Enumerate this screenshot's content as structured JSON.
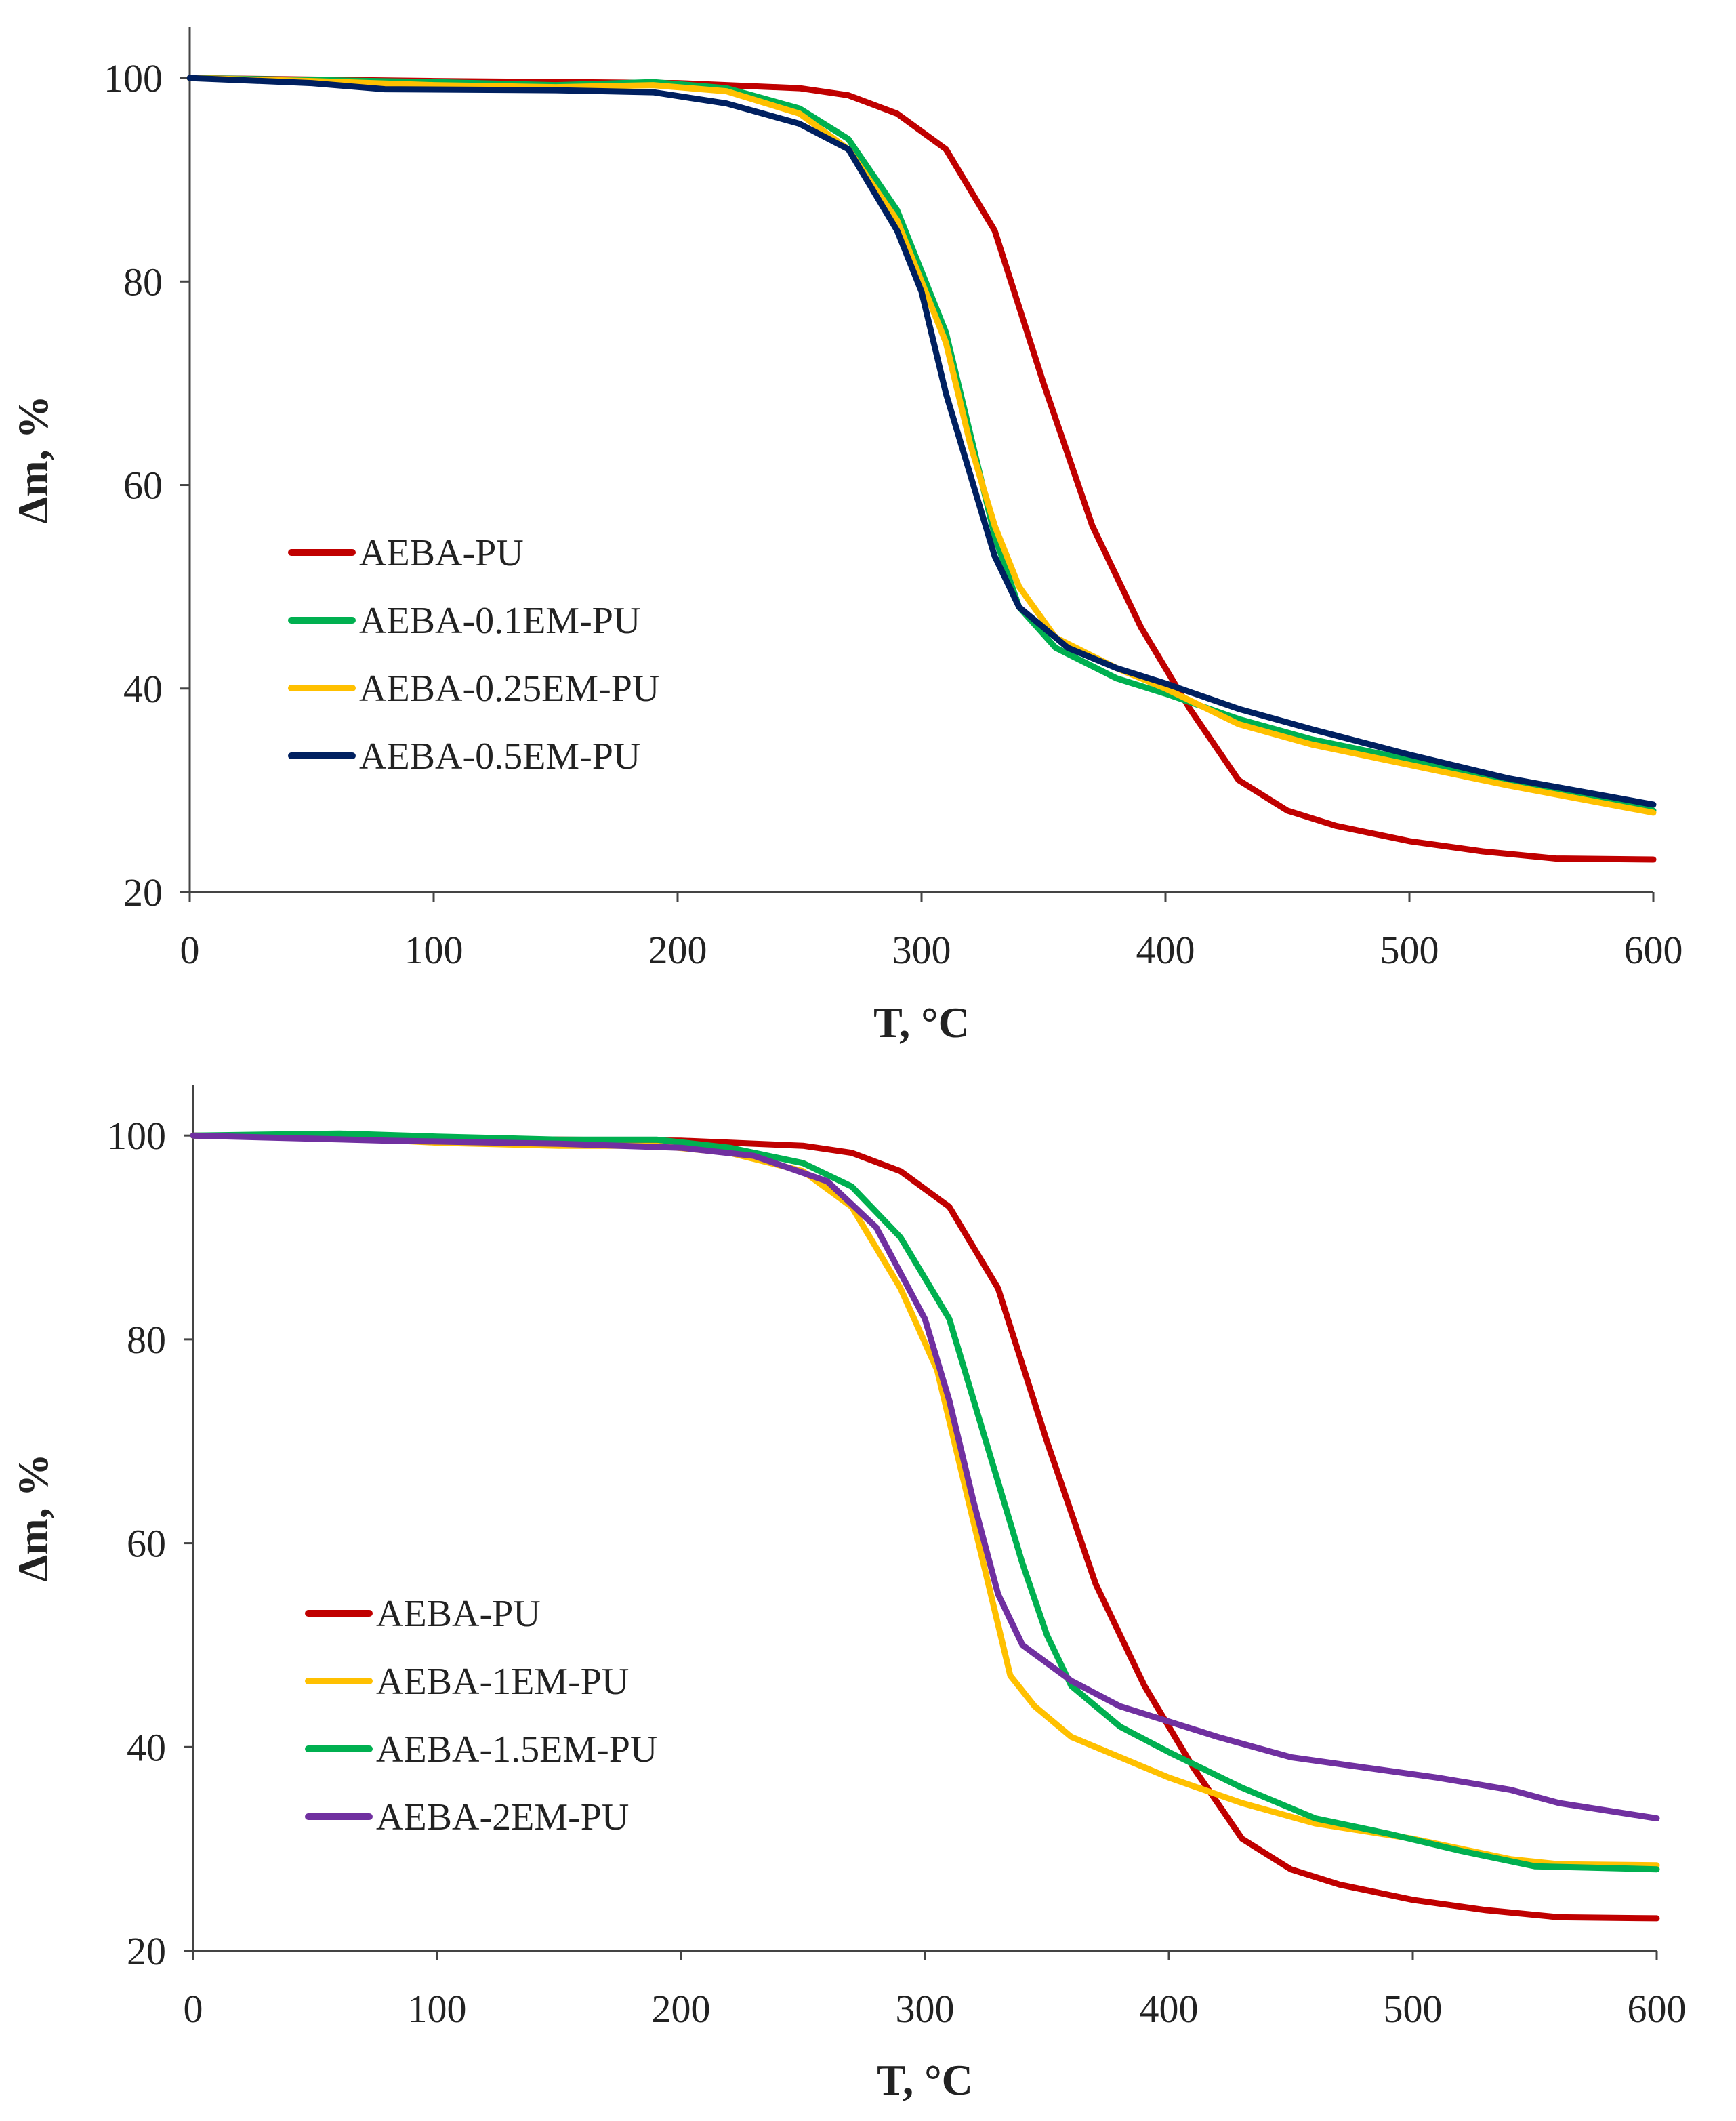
{
  "chart_data": [
    {
      "type": "line",
      "xlabel": "T, °C",
      "ylabel": "Δm, %",
      "xlim": [
        0,
        600
      ],
      "ylim": [
        20,
        105
      ],
      "xticks": [
        0,
        100,
        200,
        300,
        400,
        500,
        600
      ],
      "yticks": [
        20,
        40,
        60,
        80,
        100
      ],
      "grid": false,
      "legend_position": "center-left",
      "series": [
        {
          "name": "AEBA-PU",
          "color": "#c00000",
          "points": [
            [
              0,
              100
            ],
            [
              100,
              99.7
            ],
            [
              200,
              99.5
            ],
            [
              250,
              99.0
            ],
            [
              270,
              98.3
            ],
            [
              290,
              96.5
            ],
            [
              310,
              93
            ],
            [
              330,
              85
            ],
            [
              350,
              70
            ],
            [
              370,
              56
            ],
            [
              390,
              46
            ],
            [
              410,
              38
            ],
            [
              430,
              31
            ],
            [
              450,
              28
            ],
            [
              470,
              26.5
            ],
            [
              500,
              25
            ],
            [
              530,
              24
            ],
            [
              560,
              23.3
            ],
            [
              600,
              23.2
            ]
          ]
        },
        {
          "name": "AEBA-0.1EM-PU",
          "color": "#00b050",
          "points": [
            [
              0,
              100
            ],
            [
              50,
              99.8
            ],
            [
              100,
              99.6
            ],
            [
              150,
              99.3
            ],
            [
              190,
              99.6
            ],
            [
              220,
              99
            ],
            [
              250,
              97
            ],
            [
              270,
              94
            ],
            [
              290,
              87
            ],
            [
              310,
              75
            ],
            [
              320,
              65
            ],
            [
              330,
              55
            ],
            [
              340,
              48
            ],
            [
              355,
              44
            ],
            [
              380,
              41
            ],
            [
              400,
              39.5
            ],
            [
              430,
              37
            ],
            [
              460,
              35
            ],
            [
              500,
              33
            ],
            [
              540,
              31
            ],
            [
              600,
              28
            ]
          ]
        },
        {
          "name": "AEBA-0.25EM-PU",
          "color": "#ffc000",
          "points": [
            [
              0,
              100
            ],
            [
              50,
              99.7
            ],
            [
              100,
              99.3
            ],
            [
              150,
              99.1
            ],
            [
              190,
              99.3
            ],
            [
              220,
              98.7
            ],
            [
              250,
              96.5
            ],
            [
              270,
              93
            ],
            [
              290,
              86
            ],
            [
              310,
              74
            ],
            [
              320,
              64
            ],
            [
              330,
              56
            ],
            [
              340,
              50
            ],
            [
              355,
              45
            ],
            [
              380,
              42
            ],
            [
              400,
              40
            ],
            [
              430,
              36.5
            ],
            [
              460,
              34.5
            ],
            [
              500,
              32.5
            ],
            [
              540,
              30.5
            ],
            [
              600,
              27.8
            ]
          ]
        },
        {
          "name": "AEBA-0.5EM-PU",
          "color": "#002060",
          "points": [
            [
              0,
              100
            ],
            [
              50,
              99.5
            ],
            [
              80,
              98.9
            ],
            [
              150,
              98.8
            ],
            [
              190,
              98.6
            ],
            [
              220,
              97.5
            ],
            [
              250,
              95.5
            ],
            [
              270,
              93
            ],
            [
              290,
              85
            ],
            [
              300,
              79
            ],
            [
              310,
              69
            ],
            [
              320,
              61
            ],
            [
              330,
              53
            ],
            [
              340,
              48
            ],
            [
              360,
              44
            ],
            [
              380,
              42
            ],
            [
              400,
              40.5
            ],
            [
              430,
              38
            ],
            [
              460,
              36
            ],
            [
              500,
              33.5
            ],
            [
              540,
              31.2
            ],
            [
              600,
              28.6
            ]
          ]
        }
      ]
    },
    {
      "type": "line",
      "xlabel": "T, °C",
      "ylabel": "Δm, %",
      "xlim": [
        0,
        600
      ],
      "ylim": [
        20,
        105
      ],
      "xticks": [
        0,
        100,
        200,
        300,
        400,
        500,
        600
      ],
      "yticks": [
        20,
        40,
        60,
        80,
        100
      ],
      "grid": false,
      "legend_position": "center-left",
      "series": [
        {
          "name": "AEBA-PU",
          "color": "#c00000",
          "points": [
            [
              0,
              100
            ],
            [
              100,
              99.7
            ],
            [
              200,
              99.5
            ],
            [
              250,
              99.0
            ],
            [
              270,
              98.3
            ],
            [
              290,
              96.5
            ],
            [
              310,
              93
            ],
            [
              330,
              85
            ],
            [
              350,
              70
            ],
            [
              370,
              56
            ],
            [
              390,
              46
            ],
            [
              410,
              38
            ],
            [
              430,
              31
            ],
            [
              450,
              28
            ],
            [
              470,
              26.5
            ],
            [
              500,
              25
            ],
            [
              530,
              24
            ],
            [
              560,
              23.3
            ],
            [
              600,
              23.2
            ]
          ]
        },
        {
          "name": "AEBA-1EM-PU",
          "color": "#ffc000",
          "points": [
            [
              0,
              100
            ],
            [
              60,
              99.8
            ],
            [
              100,
              99.3
            ],
            [
              150,
              99.0
            ],
            [
              190,
              99.0
            ],
            [
              220,
              98.3
            ],
            [
              250,
              96.5
            ],
            [
              270,
              93
            ],
            [
              290,
              85
            ],
            [
              305,
              77
            ],
            [
              315,
              67
            ],
            [
              325,
              57
            ],
            [
              335,
              47
            ],
            [
              345,
              44
            ],
            [
              360,
              41
            ],
            [
              380,
              39
            ],
            [
              400,
              37
            ],
            [
              430,
              34.5
            ],
            [
              460,
              32.5
            ],
            [
              500,
              31
            ],
            [
              540,
              29
            ],
            [
              560,
              28.5
            ],
            [
              600,
              28.4
            ]
          ]
        },
        {
          "name": "AEBA-1.5EM-PU",
          "color": "#00b050",
          "points": [
            [
              0,
              100
            ],
            [
              60,
              100.2
            ],
            [
              100,
              99.9
            ],
            [
              150,
              99.6
            ],
            [
              190,
              99.6
            ],
            [
              220,
              98.8
            ],
            [
              250,
              97.3
            ],
            [
              270,
              95
            ],
            [
              290,
              90
            ],
            [
              310,
              82
            ],
            [
              320,
              74
            ],
            [
              330,
              66
            ],
            [
              340,
              58
            ],
            [
              350,
              51
            ],
            [
              360,
              46
            ],
            [
              380,
              42
            ],
            [
              400,
              39.5
            ],
            [
              430,
              36
            ],
            [
              460,
              33
            ],
            [
              490,
              31.5
            ],
            [
              520,
              29.8
            ],
            [
              550,
              28.3
            ],
            [
              600,
              28
            ]
          ]
        },
        {
          "name": "AEBA-2EM-PU",
          "color": "#7030a0",
          "points": [
            [
              0,
              100
            ],
            [
              80,
              99.5
            ],
            [
              150,
              99.2
            ],
            [
              200,
              98.8
            ],
            [
              230,
              98
            ],
            [
              260,
              95.5
            ],
            [
              280,
              91
            ],
            [
              300,
              82
            ],
            [
              310,
              74
            ],
            [
              320,
              64
            ],
            [
              330,
              55
            ],
            [
              340,
              50
            ],
            [
              360,
              46.5
            ],
            [
              380,
              44
            ],
            [
              400,
              42.5
            ],
            [
              420,
              41
            ],
            [
              450,
              39
            ],
            [
              480,
              38
            ],
            [
              510,
              37
            ],
            [
              540,
              35.8
            ],
            [
              560,
              34.5
            ],
            [
              600,
              33
            ]
          ]
        }
      ]
    }
  ]
}
